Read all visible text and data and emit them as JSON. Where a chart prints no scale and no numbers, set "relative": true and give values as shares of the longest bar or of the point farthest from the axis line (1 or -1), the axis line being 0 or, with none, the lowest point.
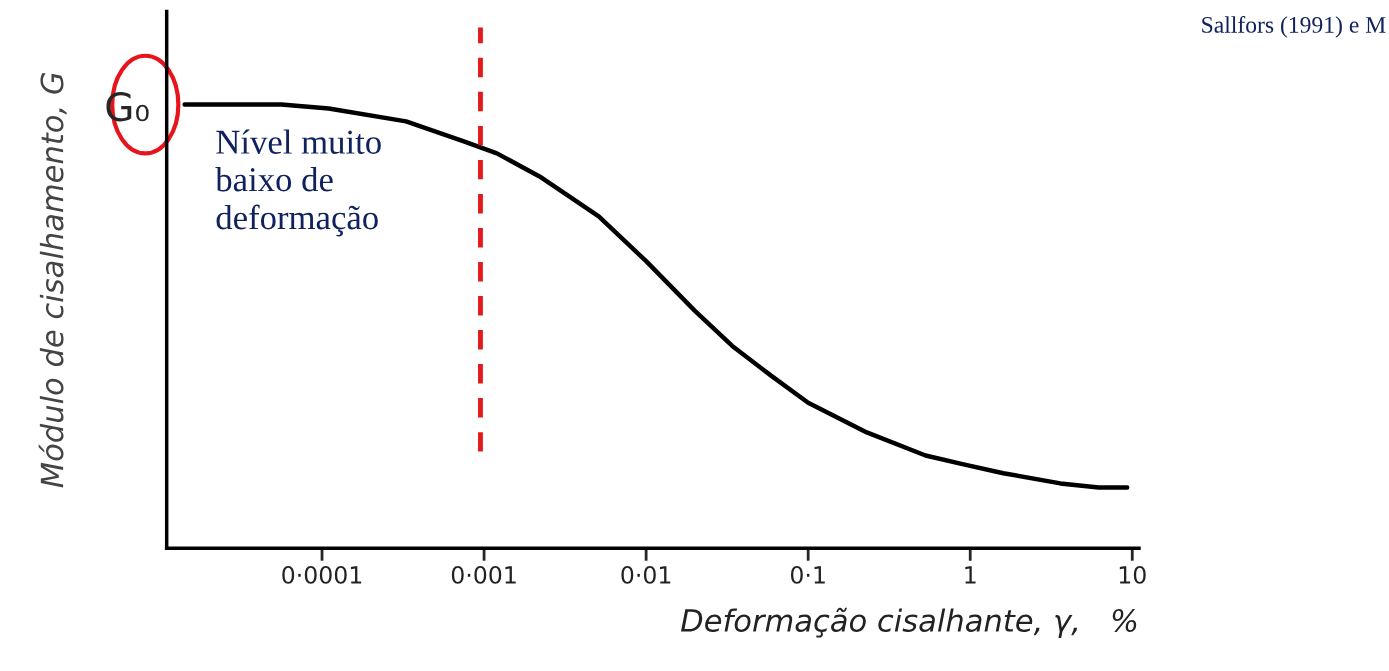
{
  "chart_data": {
    "type": "line",
    "relative": true,
    "xlabel": "Deformação cisalhante, γ,   %",
    "ylabel": "Módulo de cisalhamento, G",
    "log": "x",
    "xlim": [
      1.1e-05,
      11
    ],
    "xticks": [
      {
        "value": 0.0001,
        "label": "0·0001"
      },
      {
        "value": 0.001,
        "label": "0·001"
      },
      {
        "value": 0.01,
        "label": "0·01"
      },
      {
        "value": 0.1,
        "label": "0·1"
      },
      1,
      10
    ],
    "tick_labels": "x",
    "grid": false,
    "legend": false,
    "marker": "none",
    "line_style": "solid",
    "series": [
      {
        "color": "#000000",
        "x": [
          1.42e-05,
          5.6e-05,
          0.00011,
          0.00033,
          0.00075,
          0.0012,
          0.0022,
          0.0051,
          0.01,
          0.02,
          0.034,
          0.059,
          0.1,
          0.23,
          0.53,
          0.91,
          1.6,
          3.6,
          6.2,
          9.3
        ],
        "values": [
          1,
          1,
          0.991,
          0.962,
          0.917,
          0.89,
          0.838,
          0.748,
          0.647,
          0.535,
          0.456,
          0.389,
          0.328,
          0.261,
          0.209,
          0.189,
          0.169,
          0.146,
          0.137,
          0.137
        ]
      }
    ],
    "ref_lines": [
      {
        "axis": "x",
        "value": 0.00095,
        "color": "#e31a1c",
        "line_style": "dashed"
      }
    ],
    "annotations": [
      "G₀",
      "Nível muito\nbaixo de\ndeformação",
      "Sallfors (1991) e M"
    ]
  }
}
